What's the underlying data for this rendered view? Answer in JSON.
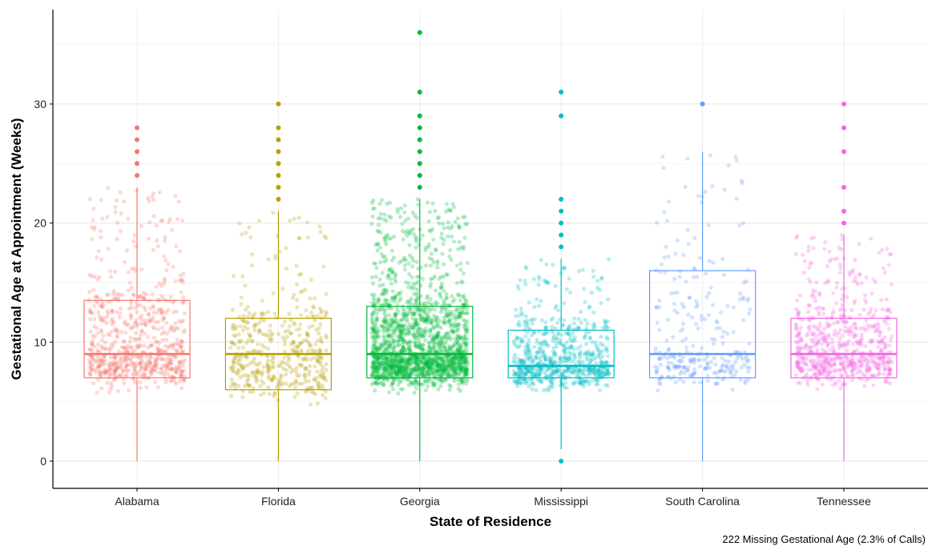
{
  "chart_data": {
    "type": "box",
    "xlabel": "State of Residence",
    "ylabel": "Gestational Age at Appointment (Weeks)",
    "caption": "222 Missing Gestational Age (2.3% of Calls)",
    "ylim": [
      -2.3,
      38
    ],
    "yticks": [
      0,
      10,
      20,
      30
    ],
    "grid": true,
    "legend": "none",
    "categories": [
      "Alabama",
      "Florida",
      "Georgia",
      "Mississippi",
      "South Carolina",
      "Tennessee"
    ],
    "colors": [
      "#F8766D",
      "#B79F00",
      "#00BA38",
      "#00BFC4",
      "#619CFF",
      "#F564E3"
    ],
    "boxes": [
      {
        "q1": 7,
        "median": 9,
        "q3": 13.5,
        "whisker_low": 0,
        "whisker_high": 23,
        "outliers": [
          24,
          25,
          26,
          27,
          28
        ]
      },
      {
        "q1": 6,
        "median": 9,
        "q3": 12,
        "whisker_low": 0,
        "whisker_high": 21,
        "outliers": [
          22,
          23,
          24,
          25,
          26,
          27,
          28,
          30
        ]
      },
      {
        "q1": 7,
        "median": 9,
        "q3": 13,
        "whisker_low": 0,
        "whisker_high": 22,
        "outliers": [
          23,
          24,
          25,
          26,
          27,
          28,
          29,
          31,
          36
        ]
      },
      {
        "q1": 7,
        "median": 8,
        "q3": 11,
        "whisker_low": 1,
        "whisker_high": 17,
        "outliers": [
          0,
          18,
          19,
          20,
          21,
          22,
          29,
          31
        ]
      },
      {
        "q1": 7,
        "median": 9,
        "q3": 16,
        "whisker_low": 0,
        "whisker_high": 26,
        "outliers": [
          30
        ]
      },
      {
        "q1": 7,
        "median": 9,
        "q3": 12,
        "whisker_low": 0,
        "whisker_high": 19,
        "outliers": [
          20,
          21,
          23,
          26,
          28,
          30
        ]
      }
    ],
    "jitter_point_counts": [
      700,
      450,
      1800,
      700,
      280,
      650
    ]
  }
}
